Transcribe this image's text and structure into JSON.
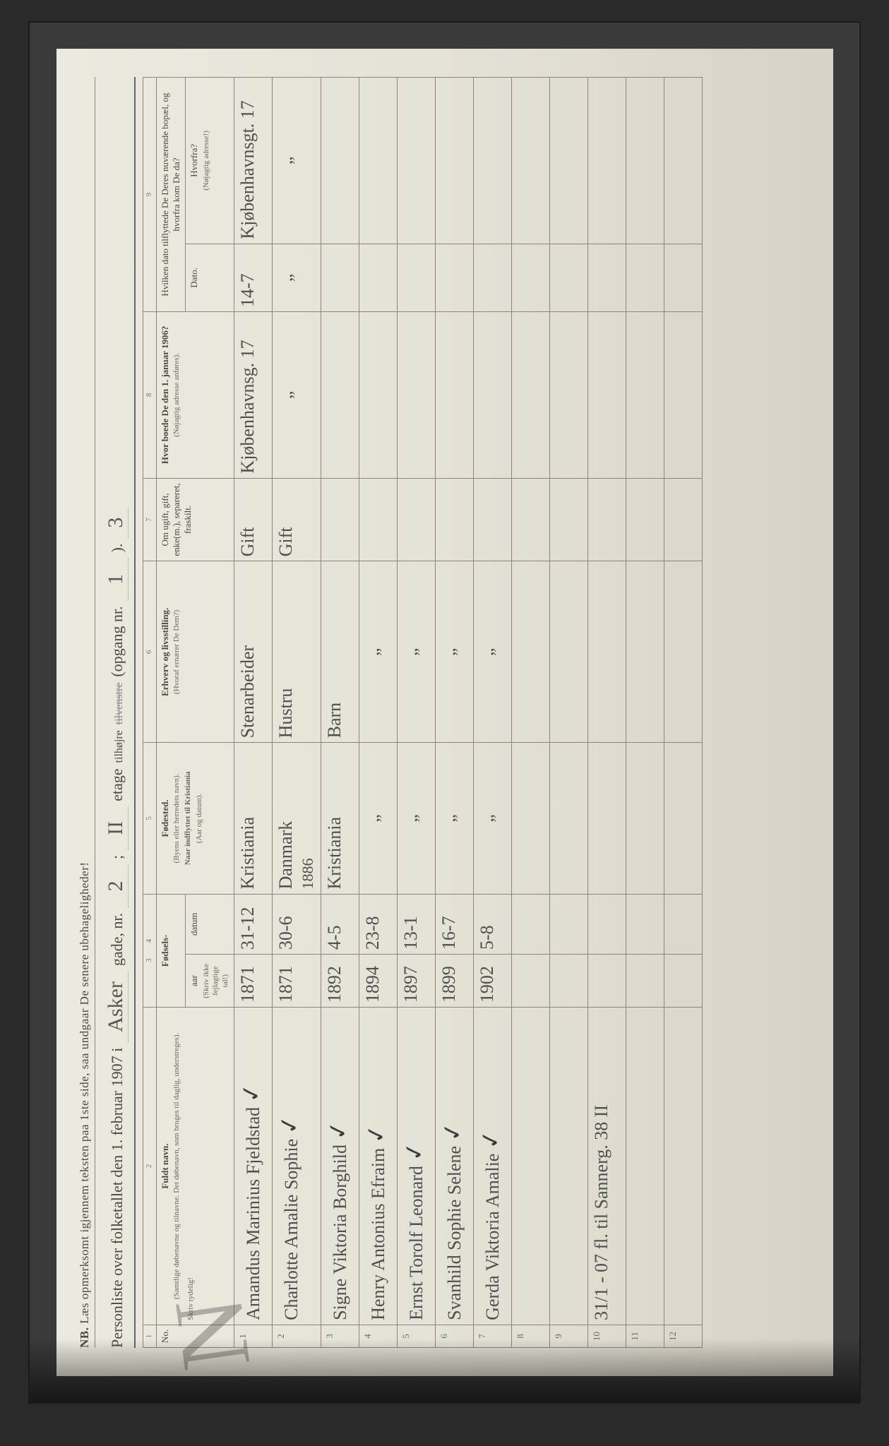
{
  "form": {
    "nb_prefix": "NB.",
    "nb_text": "Læs opmerksomt igjennem teksten paa 1ste side, saa undgaar De senere ubehageligheder!",
    "title_lead": "Personliste over folketallet den 1. februar 1907 i",
    "street_value": "Asker",
    "street_suffix": "gade, nr.",
    "street_no": "2",
    "semicolon": ";",
    "floor_value": "II",
    "floor_label": "etage",
    "side_keep": "tilhøjre",
    "side_strike": "tilvenstre",
    "opgang_label": "(opgang nr.",
    "opgang_value": "1",
    "opgang_close": ").",
    "page_no": "3",
    "skriv_tydeligt": "Skriv tydelig!",
    "big_mark": "N"
  },
  "columns": {
    "c1": "1",
    "c2": "2",
    "c3": "3",
    "c4": "4",
    "c5": "5",
    "c6": "6",
    "c7": "7",
    "c8": "8",
    "c9": "9",
    "no": "No.",
    "name_head": "Fuldt navn.",
    "name_sub": "(Samtlige døbenavne og tilnavne. Det døbenavn, som bruges til daglig, understreges).",
    "birth_head": "Fødsels-",
    "birth_year": "aar",
    "birth_date": "datum",
    "birth_sub": "(Skriv ikke fejlagtige tal!)",
    "bp_head": "Fødested.",
    "bp_sub1": "(Byens eller herredets navn).",
    "bp_sub2": "Naar indflyttet til Kristiania",
    "bp_sub3": "(Aar og datum).",
    "occ_head": "Erhverv og livsstilling.",
    "occ_sub": "(Hvoraf ernærer De Dem?)",
    "mar_head": "Om ugift, gift, enke(m.), separeret, fraskilt.",
    "addr_head": "Hvor boede De den 1. januar 1906?",
    "addr_sub": "(Nøjagtig adresse anføres).",
    "move_head": "Hvilken dato tilflyttede De Deres nuværende bopæl, og hvorfra kom De da?",
    "move_date": "Dato.",
    "move_from": "Hvorfra?",
    "move_from_sub": "(Nøjagtig adresse!)"
  },
  "rows": [
    {
      "n": "1",
      "name": "Amandus Marinius Fjeldstad",
      "check": "✓",
      "year": "1871",
      "date": "31-12",
      "birthplace": "Kristiania",
      "occupation": "Stenarbeider",
      "marital": "Gift",
      "addr1906": "Kjøbenhavnsg. 17",
      "movedate": "14-7",
      "movefrom": "Kjøbenhavnsgt. 17"
    },
    {
      "n": "2",
      "name": "Charlotte Amalie Sophie",
      "check": "✓",
      "year": "1871",
      "date": "30-6",
      "birthplace": "Danmark",
      "birthplace2": "1886",
      "occupation": "Hustru",
      "marital": "Gift",
      "addr1906": "„",
      "movedate": "„",
      "movefrom": "„"
    },
    {
      "n": "3",
      "name": "Signe Viktoria Borghild",
      "check": "✓",
      "year": "1892",
      "date": "4-5",
      "birthplace": "Kristiania",
      "occupation": "Barn",
      "marital": "",
      "addr1906": "",
      "movedate": "",
      "movefrom": ""
    },
    {
      "n": "4",
      "name": "Henry Antonius Efraim",
      "check": "✓",
      "year": "1894",
      "date": "23-8",
      "birthplace": "„",
      "occupation": "„",
      "marital": "",
      "addr1906": "",
      "movedate": "",
      "movefrom": ""
    },
    {
      "n": "5",
      "name": "Ernst Torolf Leonard",
      "check": "✓",
      "year": "1897",
      "date": "13-1",
      "birthplace": "„",
      "occupation": "„",
      "marital": "",
      "addr1906": "",
      "movedate": "",
      "movefrom": ""
    },
    {
      "n": "6",
      "name": "Svanhild Sophie Selene",
      "check": "✓",
      "year": "1899",
      "date": "16-7",
      "birthplace": "„",
      "occupation": "„",
      "marital": "",
      "addr1906": "",
      "movedate": "",
      "movefrom": ""
    },
    {
      "n": "7",
      "name": "Gerda Viktoria Amalie",
      "check": "✓",
      "year": "1902",
      "date": "5-8",
      "birthplace": "„",
      "occupation": "„",
      "marital": "",
      "addr1906": "",
      "movedate": "",
      "movefrom": ""
    },
    {
      "n": "8",
      "name": "",
      "check": "",
      "year": "",
      "date": "",
      "birthplace": "",
      "occupation": "",
      "marital": "",
      "addr1906": "",
      "movedate": "",
      "movefrom": ""
    },
    {
      "n": "9",
      "name": "",
      "check": "",
      "year": "",
      "date": "",
      "birthplace": "",
      "occupation": "",
      "marital": "",
      "addr1906": "",
      "movedate": "",
      "movefrom": ""
    },
    {
      "n": "10",
      "name": "31/1 - 07 fl. til Sannerg. 38 II",
      "check": "",
      "year": "",
      "date": "",
      "birthplace": "",
      "occupation": "",
      "marital": "",
      "addr1906": "",
      "movedate": "",
      "movefrom": ""
    },
    {
      "n": "11",
      "name": "",
      "check": "",
      "year": "",
      "date": "",
      "birthplace": "",
      "occupation": "",
      "marital": "",
      "addr1906": "",
      "movedate": "",
      "movefrom": ""
    },
    {
      "n": "12",
      "name": "",
      "check": "",
      "year": "",
      "date": "",
      "birthplace": "",
      "occupation": "",
      "marital": "",
      "addr1906": "",
      "movedate": "",
      "movefrom": ""
    }
  ],
  "style": {
    "paper_bg": "#e2dfd3",
    "ink": "#4a4a44",
    "rule": "#8a867a",
    "cursive_ink": "#4f4f4f"
  }
}
